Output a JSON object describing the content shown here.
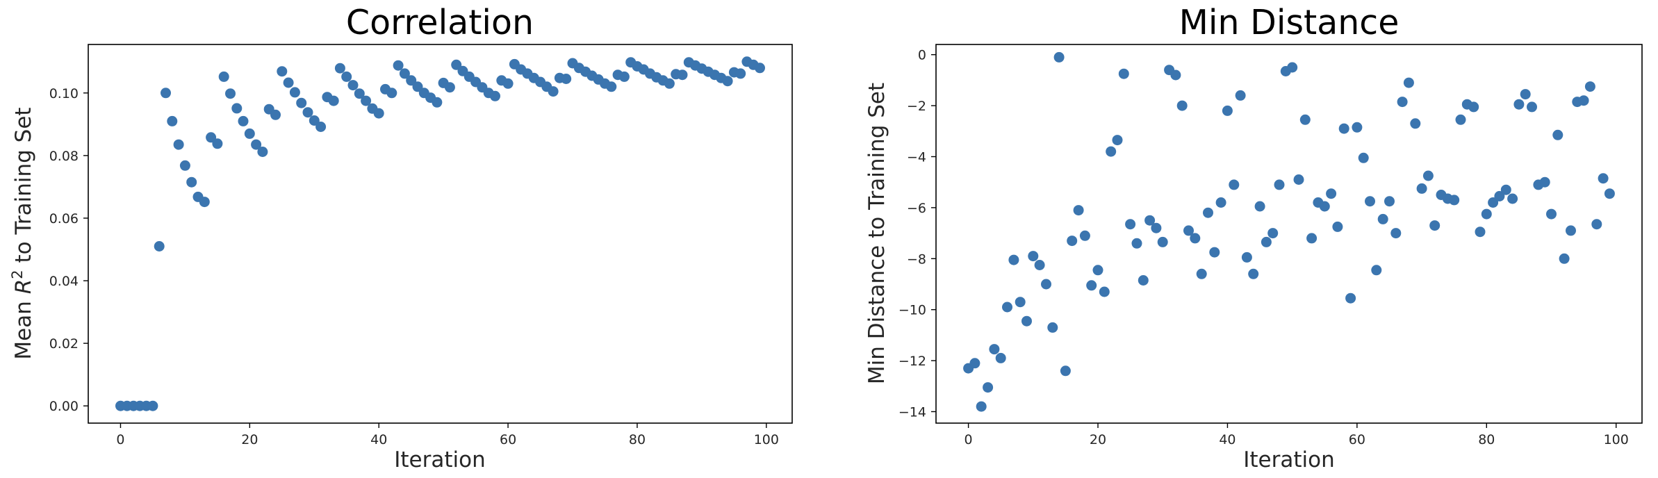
{
  "chart_data": [
    {
      "type": "scatter",
      "title": "Correlation",
      "xlabel": "Iteration",
      "ylabel_prefix": "Mean ",
      "ylabel_var": "R",
      "ylabel_sup": "2",
      "ylabel_suffix": " to Training Set",
      "xlim": [
        -5,
        104
      ],
      "ylim": [
        -0.0055,
        0.1155
      ],
      "xticks": [
        0,
        20,
        40,
        60,
        80,
        100
      ],
      "yticks": [
        0.0,
        0.02,
        0.04,
        0.06,
        0.08,
        0.1
      ],
      "ytick_format": 2,
      "color": "#3b75af",
      "grid": false,
      "x": [
        0,
        1,
        2,
        3,
        4,
        5,
        6,
        7,
        8,
        9,
        10,
        11,
        12,
        13,
        14,
        15,
        16,
        17,
        18,
        19,
        20,
        21,
        22,
        23,
        24,
        25,
        26,
        27,
        28,
        29,
        30,
        31,
        32,
        33,
        34,
        35,
        36,
        37,
        38,
        39,
        40,
        41,
        42,
        43,
        44,
        45,
        46,
        47,
        48,
        49,
        50,
        51,
        52,
        53,
        54,
        55,
        56,
        57,
        58,
        59,
        60,
        61,
        62,
        63,
        64,
        65,
        66,
        67,
        68,
        69,
        70,
        71,
        72,
        73,
        74,
        75,
        76,
        77,
        78,
        79,
        80,
        81,
        82,
        83,
        84,
        85,
        86,
        87,
        88,
        89,
        90,
        91,
        92,
        93,
        94,
        95,
        96,
        97,
        98,
        99
      ],
      "y": [
        0,
        0,
        0,
        0,
        0,
        0,
        0.051,
        0.1,
        0.091,
        0.0835,
        0.0768,
        0.0715,
        0.0668,
        0.0652,
        0.0858,
        0.0838,
        0.1052,
        0.0998,
        0.0951,
        0.091,
        0.087,
        0.0835,
        0.0812,
        0.0948,
        0.093,
        0.1069,
        0.1033,
        0.1002,
        0.0968,
        0.0938,
        0.0912,
        0.0892,
        0.0987,
        0.0975,
        0.1079,
        0.1052,
        0.1025,
        0.0998,
        0.0975,
        0.095,
        0.0935,
        0.1012,
        0.1,
        0.1088,
        0.1062,
        0.104,
        0.102,
        0.1,
        0.0985,
        0.097,
        0.1032,
        0.1018,
        0.109,
        0.107,
        0.1052,
        0.1035,
        0.1018,
        0.1,
        0.099,
        0.104,
        0.103,
        0.1092,
        0.1075,
        0.1062,
        0.1048,
        0.1035,
        0.102,
        0.1005,
        0.1048,
        0.1045,
        0.1095,
        0.108,
        0.1068,
        0.1055,
        0.1043,
        0.103,
        0.102,
        0.1058,
        0.1052,
        0.1098,
        0.1085,
        0.1075,
        0.1062,
        0.105,
        0.104,
        0.103,
        0.106,
        0.1058,
        0.1098,
        0.1088,
        0.1078,
        0.1068,
        0.1058,
        0.1048,
        0.1038,
        0.1066,
        0.1062,
        0.11,
        0.109,
        0.108
      ]
    },
    {
      "type": "scatter",
      "title": "Min Distance",
      "xlabel": "Iteration",
      "ylabel": "Min Distance to Training Set",
      "xlim": [
        -5,
        104
      ],
      "ylim": [
        -14.45,
        0.4
      ],
      "xticks": [
        0,
        20,
        40,
        60,
        80,
        100
      ],
      "yticks": [
        -14,
        -12,
        -10,
        -8,
        -6,
        -4,
        -2,
        0
      ],
      "ytick_format": 0,
      "color": "#3b75af",
      "grid": false,
      "x": [
        0,
        1,
        2,
        3,
        4,
        5,
        6,
        7,
        8,
        9,
        10,
        11,
        12,
        13,
        14,
        15,
        16,
        17,
        18,
        19,
        20,
        21,
        22,
        23,
        24,
        25,
        26,
        27,
        28,
        29,
        30,
        31,
        32,
        33,
        34,
        35,
        36,
        37,
        38,
        39,
        40,
        41,
        42,
        43,
        44,
        45,
        46,
        47,
        48,
        49,
        50,
        51,
        52,
        53,
        54,
        55,
        56,
        57,
        58,
        59,
        60,
        61,
        62,
        63,
        64,
        65,
        66,
        67,
        68,
        69,
        70,
        71,
        72,
        73,
        74,
        75,
        76,
        77,
        78,
        79,
        80,
        81,
        82,
        83,
        84,
        85,
        86,
        87,
        88,
        89,
        90,
        91,
        92,
        93,
        94,
        95,
        96,
        97,
        98,
        99
      ],
      "y": [
        -12.3,
        -12.1,
        -13.8,
        -13.05,
        -11.55,
        -11.9,
        -9.9,
        -8.05,
        -9.7,
        -10.45,
        -7.9,
        -8.25,
        -9.0,
        -10.7,
        -0.1,
        -12.4,
        -7.3,
        -6.1,
        -7.1,
        -9.05,
        -8.45,
        -9.3,
        -3.8,
        -3.35,
        -0.75,
        -6.65,
        -7.4,
        -8.85,
        -6.5,
        -6.8,
        -7.35,
        -0.6,
        -0.8,
        -2.0,
        -6.9,
        -7.2,
        -8.6,
        -6.2,
        -7.75,
        -5.8,
        -2.2,
        -5.1,
        -1.6,
        -7.95,
        -8.6,
        -5.95,
        -7.35,
        -7.0,
        -5.1,
        -0.65,
        -0.5,
        -4.9,
        -2.55,
        -7.2,
        -5.8,
        -5.95,
        -5.45,
        -6.75,
        -2.9,
        -9.55,
        -2.85,
        -4.05,
        -5.75,
        -8.45,
        -6.45,
        -5.75,
        -7.0,
        -1.85,
        -1.1,
        -2.7,
        -5.25,
        -4.75,
        -6.7,
        -5.5,
        -5.65,
        -5.7,
        -2.55,
        -1.95,
        -2.05,
        -6.95,
        -6.25,
        -5.8,
        -5.55,
        -5.3,
        -5.65,
        -1.95,
        -1.55,
        -2.05,
        -5.1,
        -5.0,
        -6.25,
        -3.15,
        -8.0,
        -6.9,
        -1.85,
        -1.8,
        -1.25,
        -6.65,
        -4.85,
        -5.45
      ]
    }
  ]
}
